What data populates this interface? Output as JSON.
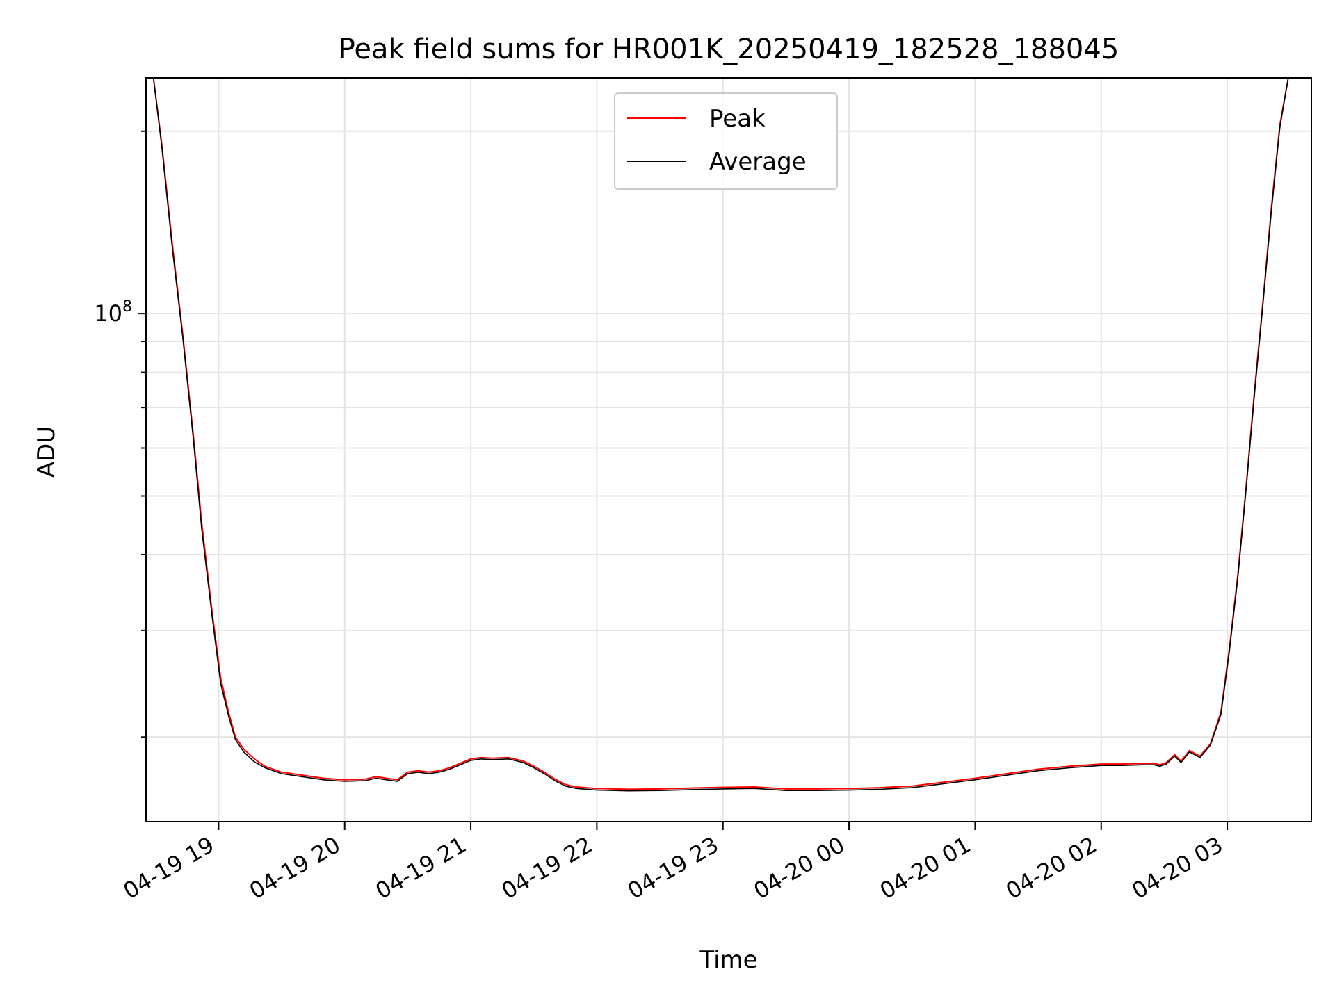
{
  "chart_data": {
    "type": "line",
    "title": "Peak field sums for HR001K_20250419_182528_188045",
    "xlabel": "Time",
    "ylabel": "ADU",
    "y_scale": "log",
    "ylim": [
      14500000,
      245000000
    ],
    "xlim": [
      "2025-04-19 18:25:28",
      "2025-04-20 03:40:00"
    ],
    "x_ticks": [
      {
        "x": "2025-04-19 19:00:00",
        "label": "04-19 19"
      },
      {
        "x": "2025-04-19 20:00:00",
        "label": "04-19 20"
      },
      {
        "x": "2025-04-19 21:00:00",
        "label": "04-19 21"
      },
      {
        "x": "2025-04-19 22:00:00",
        "label": "04-19 22"
      },
      {
        "x": "2025-04-19 23:00:00",
        "label": "04-19 23"
      },
      {
        "x": "2025-04-20 00:00:00",
        "label": "04-20 00"
      },
      {
        "x": "2025-04-20 01:00:00",
        "label": "04-20 01"
      },
      {
        "x": "2025-04-20 02:00:00",
        "label": "04-20 02"
      },
      {
        "x": "2025-04-20 03:00:00",
        "label": "04-20 03"
      }
    ],
    "y_ticks": [
      {
        "value": 100000000,
        "label_base": "10",
        "label_exp": "8"
      }
    ],
    "grid": true,
    "legend_position": "top-center",
    "series": [
      {
        "name": "Peak",
        "color": "#ff0000",
        "x": [
          "2025-04-19 18:29:00",
          "2025-04-19 18:33:00",
          "2025-04-19 18:38:00",
          "2025-04-19 18:43:00",
          "2025-04-19 18:48:00",
          "2025-04-19 18:52:00",
          "2025-04-19 18:57:00",
          "2025-04-19 19:01:00",
          "2025-04-19 19:05:00",
          "2025-04-19 19:08:00",
          "2025-04-19 19:12:00",
          "2025-04-19 19:17:00",
          "2025-04-19 19:22:00",
          "2025-04-19 19:30:00",
          "2025-04-19 19:40:00",
          "2025-04-19 19:50:00",
          "2025-04-19 20:00:00",
          "2025-04-19 20:10:00",
          "2025-04-19 20:15:00",
          "2025-04-19 20:20:00",
          "2025-04-19 20:25:00",
          "2025-04-19 20:30:00",
          "2025-04-19 20:35:00",
          "2025-04-19 20:40:00",
          "2025-04-19 20:45:00",
          "2025-04-19 20:50:00",
          "2025-04-19 20:55:00",
          "2025-04-19 21:00:00",
          "2025-04-19 21:05:00",
          "2025-04-19 21:10:00",
          "2025-04-19 21:18:00",
          "2025-04-19 21:25:00",
          "2025-04-19 21:30:00",
          "2025-04-19 21:35:00",
          "2025-04-19 21:40:00",
          "2025-04-19 21:45:00",
          "2025-04-19 21:50:00",
          "2025-04-19 22:00:00",
          "2025-04-19 22:15:00",
          "2025-04-19 22:30:00",
          "2025-04-19 22:45:00",
          "2025-04-19 23:00:00",
          "2025-04-19 23:15:00",
          "2025-04-19 23:30:00",
          "2025-04-19 23:45:00",
          "2025-04-20 00:00:00",
          "2025-04-20 00:15:00",
          "2025-04-20 00:30:00",
          "2025-04-20 00:45:00",
          "2025-04-20 01:00:00",
          "2025-04-20 01:15:00",
          "2025-04-20 01:30:00",
          "2025-04-20 01:45:00",
          "2025-04-20 02:00:00",
          "2025-04-20 02:10:00",
          "2025-04-20 02:20:00",
          "2025-04-20 02:25:00",
          "2025-04-20 02:28:00",
          "2025-04-20 02:31:00",
          "2025-04-20 02:35:00",
          "2025-04-20 02:38:00",
          "2025-04-20 02:42:00",
          "2025-04-20 02:47:00",
          "2025-04-20 02:52:00",
          "2025-04-20 02:57:00",
          "2025-04-20 03:01:00",
          "2025-04-20 03:05:00",
          "2025-04-20 03:09:00",
          "2025-04-20 03:13:00",
          "2025-04-20 03:17:00",
          "2025-04-20 03:21:00",
          "2025-04-20 03:25:00",
          "2025-04-20 03:29:00",
          "2025-04-20 03:33:00",
          "2025-04-20 03:38:00"
        ],
        "values": [
          245000000,
          190000000,
          130000000,
          92000000,
          63000000,
          45000000,
          32000000,
          25000000,
          21800000,
          20000000,
          19100000,
          18400000,
          17900000,
          17500000,
          17300000,
          17100000,
          17000000,
          17050000,
          17200000,
          17100000,
          17000000,
          17500000,
          17600000,
          17500000,
          17600000,
          17800000,
          18100000,
          18400000,
          18500000,
          18450000,
          18500000,
          18250000,
          17900000,
          17500000,
          17050000,
          16700000,
          16550000,
          16450000,
          16400000,
          16420000,
          16480000,
          16520000,
          16550000,
          16420000,
          16420000,
          16450000,
          16500000,
          16600000,
          16850000,
          17100000,
          17400000,
          17700000,
          17900000,
          18050000,
          18050000,
          18100000,
          18100000,
          18000000,
          18150000,
          18700000,
          18250000,
          19000000,
          18600000,
          19500000,
          22000000,
          28000000,
          37000000,
          52000000,
          75000000,
          105000000,
          150000000,
          205000000,
          245000000,
          245000000,
          245000000
        ]
      },
      {
        "name": "Average",
        "color": "#000000",
        "x": [
          "2025-04-19 18:29:00",
          "2025-04-19 18:33:00",
          "2025-04-19 18:38:00",
          "2025-04-19 18:43:00",
          "2025-04-19 18:48:00",
          "2025-04-19 18:52:00",
          "2025-04-19 18:57:00",
          "2025-04-19 19:01:00",
          "2025-04-19 19:05:00",
          "2025-04-19 19:08:00",
          "2025-04-19 19:12:00",
          "2025-04-19 19:17:00",
          "2025-04-19 19:22:00",
          "2025-04-19 19:30:00",
          "2025-04-19 19:40:00",
          "2025-04-19 19:50:00",
          "2025-04-19 20:00:00",
          "2025-04-19 20:10:00",
          "2025-04-19 20:15:00",
          "2025-04-19 20:20:00",
          "2025-04-19 20:25:00",
          "2025-04-19 20:30:00",
          "2025-04-19 20:35:00",
          "2025-04-19 20:40:00",
          "2025-04-19 20:45:00",
          "2025-04-19 20:50:00",
          "2025-04-19 20:55:00",
          "2025-04-19 21:00:00",
          "2025-04-19 21:05:00",
          "2025-04-19 21:10:00",
          "2025-04-19 21:18:00",
          "2025-04-19 21:25:00",
          "2025-04-19 21:30:00",
          "2025-04-19 21:35:00",
          "2025-04-19 21:40:00",
          "2025-04-19 21:45:00",
          "2025-04-19 21:50:00",
          "2025-04-19 22:00:00",
          "2025-04-19 22:15:00",
          "2025-04-19 22:30:00",
          "2025-04-19 22:45:00",
          "2025-04-19 23:00:00",
          "2025-04-19 23:15:00",
          "2025-04-19 23:30:00",
          "2025-04-19 23:45:00",
          "2025-04-20 00:00:00",
          "2025-04-20 00:15:00",
          "2025-04-20 00:30:00",
          "2025-04-20 00:45:00",
          "2025-04-20 01:00:00",
          "2025-04-20 01:15:00",
          "2025-04-20 01:30:00",
          "2025-04-20 01:45:00",
          "2025-04-20 02:00:00",
          "2025-04-20 02:10:00",
          "2025-04-20 02:20:00",
          "2025-04-20 02:25:00",
          "2025-04-20 02:28:00",
          "2025-04-20 02:31:00",
          "2025-04-20 02:35:00",
          "2025-04-20 02:38:00",
          "2025-04-20 02:42:00",
          "2025-04-20 02:47:00",
          "2025-04-20 02:52:00",
          "2025-04-20 02:57:00",
          "2025-04-20 03:01:00",
          "2025-04-20 03:05:00",
          "2025-04-20 03:09:00",
          "2025-04-20 03:13:00",
          "2025-04-20 03:17:00",
          "2025-04-20 03:21:00",
          "2025-04-20 03:25:00",
          "2025-04-20 03:29:00",
          "2025-04-20 03:33:00",
          "2025-04-20 03:38:00"
        ],
        "values": [
          245000000,
          188000000,
          128000000,
          91000000,
          62000000,
          44000000,
          31500000,
          24500000,
          21500000,
          19800000,
          18900000,
          18200000,
          17800000,
          17400000,
          17200000,
          17000000,
          16900000,
          16950000,
          17100000,
          17000000,
          16900000,
          17400000,
          17500000,
          17400000,
          17500000,
          17700000,
          18000000,
          18300000,
          18400000,
          18350000,
          18400000,
          18150000,
          17800000,
          17400000,
          16950000,
          16600000,
          16450000,
          16350000,
          16300000,
          16320000,
          16380000,
          16420000,
          16450000,
          16320000,
          16320000,
          16350000,
          16400000,
          16500000,
          16750000,
          17000000,
          17300000,
          17600000,
          17800000,
          17950000,
          17950000,
          18000000,
          18000000,
          17900000,
          18050000,
          18600000,
          18150000,
          18900000,
          18500000,
          19400000,
          21800000,
          27700000,
          36600000,
          51500000,
          74000000,
          104000000,
          148000000,
          203000000,
          245000000,
          245000000,
          245000000
        ]
      }
    ]
  }
}
